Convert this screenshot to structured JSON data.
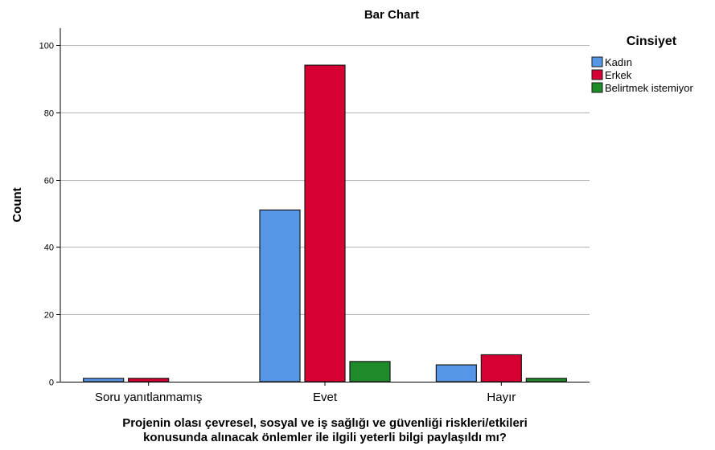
{
  "chart_data": {
    "type": "bar",
    "title": "Bar Chart",
    "xlabel": "Projenin olası çevresel, sosyal ve iş sağlığı ve güvenliği riskleri/etkileri konusunda alınacak önlemler ile ilgili yeterli bilgi paylaşıldı mı?",
    "xlabel_lines": [
      "Projenin olası çevresel, sosyal ve iş sağlığı ve güvenliği riskleri/etkileri",
      "konusunda alınacak önlemler ile ilgili yeterli bilgi paylaşıldı mı?"
    ],
    "ylabel": "Count",
    "ylim": [
      0,
      105
    ],
    "yticks": [
      0,
      20,
      40,
      60,
      80,
      100
    ],
    "grid": true,
    "categories": [
      "Soru yanıtlanmamış",
      "Evet",
      "Hayır"
    ],
    "legend_title": "Cinsiyet",
    "legend_position": "right",
    "series": [
      {
        "name": "Kadın",
        "color": "#5596e6",
        "values": [
          1,
          51,
          5
        ]
      },
      {
        "name": "Erkek",
        "color": "#d60032",
        "values": [
          1,
          94,
          8
        ]
      },
      {
        "name": "Belirtmek istemiyor",
        "color": "#1f8a2a",
        "values": [
          0,
          6,
          1
        ]
      }
    ]
  }
}
